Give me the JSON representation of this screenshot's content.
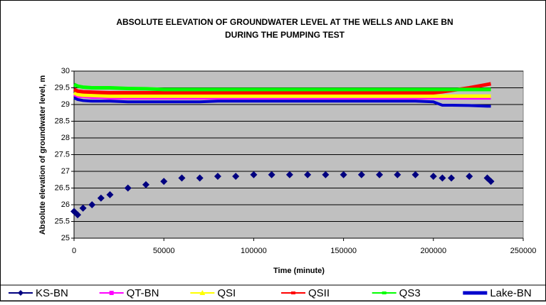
{
  "chart_data": {
    "type": "line",
    "title": "ABSOLUTE ELEVATION OF GROUNDWATER LEVEL AT THE WELLS AND LAKE BN",
    "subtitle": "DURING THE PUMPING TEST",
    "x_label": "Time (minute)",
    "y_label": "Absolute elevation of groundwater level, m",
    "x": [
      0,
      2000,
      5000,
      10000,
      15000,
      20000,
      30000,
      40000,
      50000,
      60000,
      70000,
      80000,
      90000,
      100000,
      110000,
      120000,
      130000,
      140000,
      150000,
      160000,
      170000,
      180000,
      190000,
      200000,
      205000,
      210000,
      220000,
      230000,
      232000
    ],
    "series": [
      {
        "name": "KS-BN",
        "color": "#000080",
        "values": [
          25.8,
          25.7,
          25.9,
          26.0,
          26.2,
          26.3,
          26.5,
          26.6,
          26.7,
          26.8,
          26.8,
          26.85,
          26.85,
          26.9,
          26.9,
          26.9,
          26.9,
          26.9,
          26.9,
          26.9,
          26.9,
          26.9,
          26.9,
          26.85,
          26.8,
          26.8,
          26.85,
          26.8,
          26.7
        ]
      },
      {
        "name": "QT-BN",
        "color": "#ff00ff",
        "values": [
          29.3,
          29.25,
          29.25,
          29.22,
          29.22,
          29.2,
          29.2,
          29.2,
          29.2,
          29.2,
          29.2,
          29.2,
          29.2,
          29.2,
          29.2,
          29.2,
          29.2,
          29.2,
          29.2,
          29.2,
          29.2,
          29.2,
          29.2,
          29.2,
          29.2,
          29.2,
          29.2,
          29.2,
          29.2
        ]
      },
      {
        "name": "QSI",
        "color": "#ffff00",
        "values": [
          29.35,
          29.3,
          29.28,
          29.27,
          29.26,
          29.25,
          29.25,
          29.25,
          29.25,
          29.25,
          29.25,
          29.25,
          29.25,
          29.25,
          29.25,
          29.25,
          29.25,
          29.25,
          29.25,
          29.25,
          29.25,
          29.25,
          29.25,
          29.25,
          29.25,
          29.25,
          29.25,
          29.25,
          29.25
        ]
      },
      {
        "name": "QSII",
        "color": "#ff0000",
        "values": [
          29.45,
          29.4,
          29.38,
          29.37,
          29.36,
          29.35,
          29.35,
          29.35,
          29.35,
          29.35,
          29.35,
          29.35,
          29.35,
          29.35,
          29.35,
          29.35,
          29.35,
          29.35,
          29.35,
          29.35,
          29.35,
          29.35,
          29.35,
          29.35,
          29.38,
          29.42,
          29.5,
          29.6,
          29.62
        ]
      },
      {
        "name": "QS3",
        "color": "#00ff00",
        "values": [
          29.6,
          29.55,
          29.52,
          29.5,
          29.5,
          29.5,
          29.48,
          29.47,
          29.45,
          29.45,
          29.45,
          29.45,
          29.45,
          29.45,
          29.45,
          29.45,
          29.45,
          29.45,
          29.45,
          29.45,
          29.45,
          29.45,
          29.45,
          29.45,
          29.45,
          29.45,
          29.45,
          29.45,
          29.45
        ]
      },
      {
        "name": "Lake-BN",
        "color": "#0000cc",
        "values": [
          29.2,
          29.15,
          29.12,
          29.1,
          29.1,
          29.1,
          29.08,
          29.08,
          29.08,
          29.08,
          29.08,
          29.1,
          29.1,
          29.1,
          29.1,
          29.1,
          29.1,
          29.1,
          29.1,
          29.1,
          29.1,
          29.1,
          29.1,
          29.08,
          28.98,
          28.98,
          28.97,
          28.95,
          28.95
        ]
      }
    ],
    "xlim": [
      0,
      250000
    ],
    "xticks": [
      0,
      50000,
      100000,
      150000,
      200000,
      250000
    ],
    "ylim": [
      25,
      30
    ],
    "yticks": [
      25,
      25.5,
      26,
      26.5,
      27,
      27.5,
      28,
      28.5,
      29,
      29.5,
      30
    ],
    "grid": true,
    "legend": "bottom"
  }
}
